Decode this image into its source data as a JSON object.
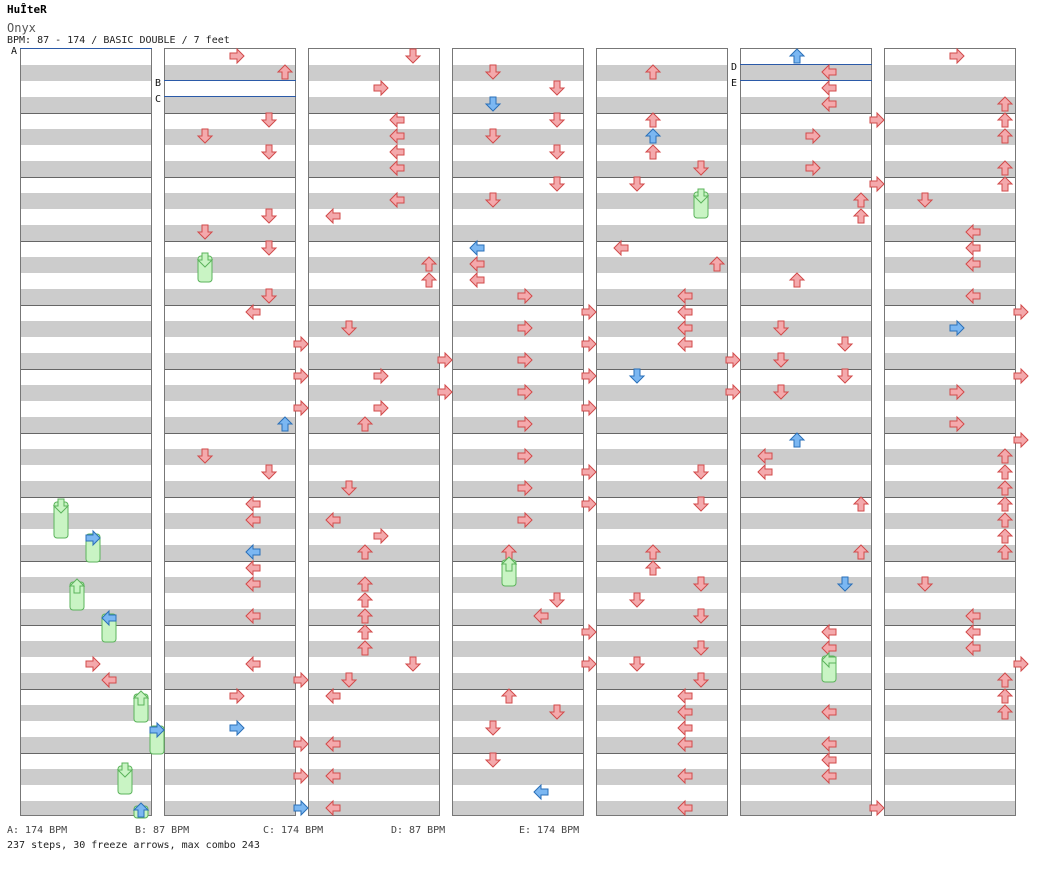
{
  "title": "HuÎteR",
  "artist": "Onyx",
  "meta": "BPM: 87 - 174 / BASIC DOUBLE / 7 feet",
  "markers": [
    "A",
    "B",
    "C",
    "D",
    "E"
  ],
  "legend": [
    "A: 174 BPM",
    "B: 87 BPM",
    "C: 174 BPM",
    "D: 87 BPM",
    "E: 174 BPM"
  ],
  "summary": "237 steps, 30 freeze arrows, max combo 243",
  "colors": {
    "note": "#f4a9ac",
    "note_stroke": "#d24a4a",
    "freeze": "#c9f4c4",
    "freeze_stroke": "#5bb35b",
    "shock": "#7bb7f2",
    "marker": "#2b5aa8"
  }
}
